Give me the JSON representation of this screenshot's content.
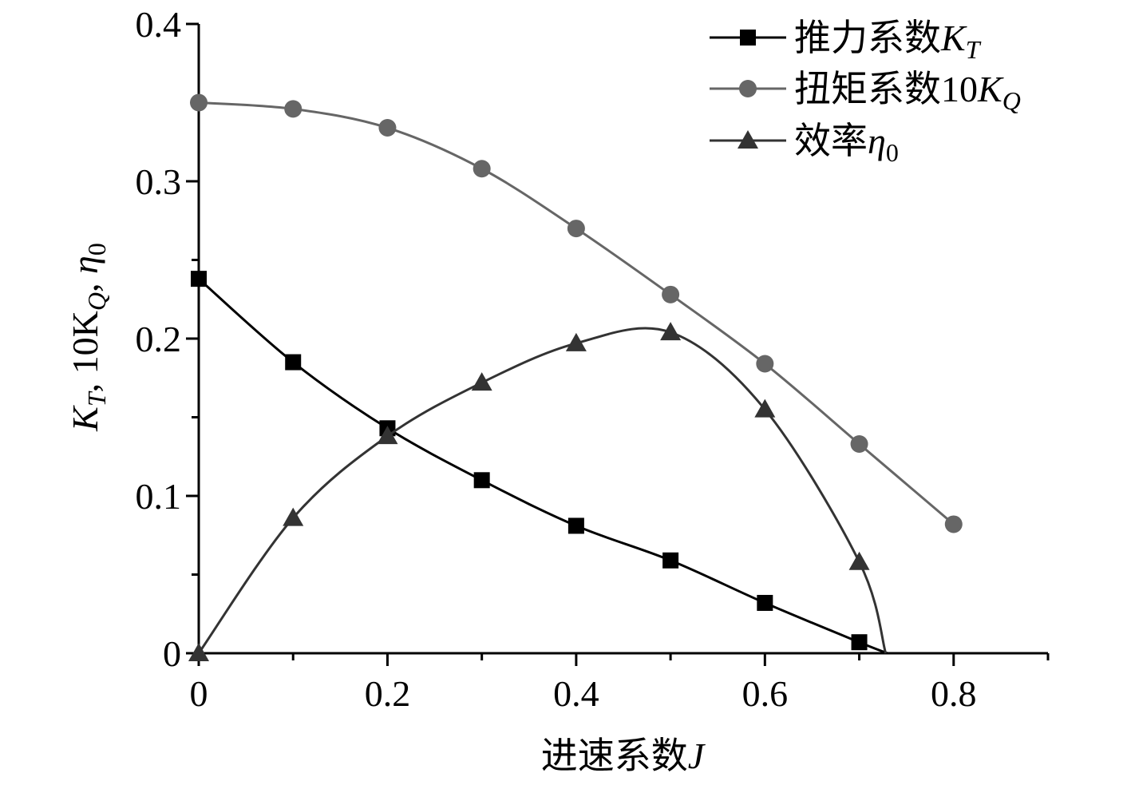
{
  "chart_data": {
    "type": "line",
    "title": "",
    "xlabel": {
      "prefix": "进速系数",
      "symbol": "J"
    },
    "ylabel": {
      "text": "K",
      "sub1": "T",
      "mid": ", 10K",
      "sub2": "Q",
      "sep": ", ",
      "eta": "η",
      "sub3": "0"
    },
    "xlim": [
      0,
      0.9
    ],
    "ylim": [
      0,
      0.4
    ],
    "x_ticks": [
      0,
      0.2,
      0.4,
      0.6,
      0.8
    ],
    "x_tick_labels": [
      "0",
      "0.2",
      "0.4",
      "0.6",
      "0.8"
    ],
    "y_ticks": [
      0,
      0.1,
      0.2,
      0.3,
      0.4
    ],
    "y_tick_labels": [
      "0",
      "0.1",
      "0.2",
      "0.3",
      "0.4"
    ],
    "grid": false,
    "legend_position": "top-right",
    "series": [
      {
        "name": "推力系数K_T",
        "legend": {
          "main": "推力系数",
          "sym": "K",
          "sub": "T"
        },
        "marker": "square",
        "color": "#000000",
        "x": [
          0,
          0.1,
          0.2,
          0.3,
          0.4,
          0.5,
          0.6,
          0.7
        ],
        "y": [
          0.238,
          0.185,
          0.143,
          0.11,
          0.081,
          0.059,
          0.032,
          0.007
        ],
        "curve_end": [
          0.73,
          0
        ]
      },
      {
        "name": "扭矩系数10K_Q",
        "legend": {
          "main": "扭矩系数10",
          "sym": "K",
          "sub": "Q"
        },
        "marker": "circle",
        "color": "#666666",
        "x": [
          0,
          0.1,
          0.2,
          0.3,
          0.4,
          0.5,
          0.6,
          0.7,
          0.8
        ],
        "y": [
          0.35,
          0.346,
          0.334,
          0.308,
          0.27,
          0.228,
          0.184,
          0.133,
          0.082
        ]
      },
      {
        "name": "效率η_0",
        "legend": {
          "main": "效率",
          "sym": "η",
          "sub": "0"
        },
        "marker": "triangle",
        "color": "#333333",
        "x": [
          0,
          0.1,
          0.2,
          0.3,
          0.4,
          0.5,
          0.6,
          0.7
        ],
        "y": [
          0,
          0.086,
          0.138,
          0.172,
          0.197,
          0.204,
          0.155,
          0.058
        ],
        "curve_end": [
          0.728,
          0
        ]
      }
    ]
  }
}
